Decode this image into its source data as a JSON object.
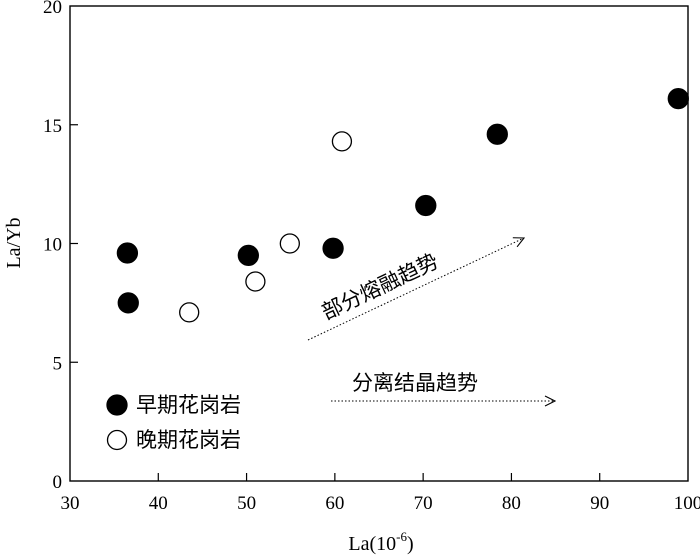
{
  "chart_data": {
    "type": "scatter",
    "xlabel": "La(10",
    "xlabel_sup": "-6",
    "xlabel_close": ")",
    "ylabel": "La/Yb",
    "xlim": [
      30,
      100
    ],
    "ylim": [
      0,
      20
    ],
    "xticks": [
      30,
      40,
      50,
      60,
      70,
      80,
      90,
      100
    ],
    "yticks": [
      0,
      5,
      10,
      15,
      20
    ],
    "grid": false,
    "legend_position": "bottom-left",
    "series": [
      {
        "name": "早期花岗岩",
        "marker": "filled-circle",
        "color": "#000000",
        "points": [
          {
            "x": 36.5,
            "y": 9.6
          },
          {
            "x": 36.6,
            "y": 7.5
          },
          {
            "x": 50.2,
            "y": 9.5
          },
          {
            "x": 59.8,
            "y": 9.8
          },
          {
            "x": 70.3,
            "y": 11.6
          },
          {
            "x": 78.4,
            "y": 14.6
          },
          {
            "x": 98.9,
            "y": 16.1
          }
        ]
      },
      {
        "name": "晚期花岗岩",
        "marker": "open-circle",
        "color": "#000000",
        "points": [
          {
            "x": 43.5,
            "y": 7.1
          },
          {
            "x": 51.0,
            "y": 8.4
          },
          {
            "x": 54.9,
            "y": 10.0
          },
          {
            "x": 60.8,
            "y": 14.3
          }
        ]
      }
    ],
    "annotations": [
      {
        "text": "部分熔融趋势",
        "arrow": "diagonal-dotted"
      },
      {
        "text": "分离结晶趋势",
        "arrow": "horizontal-dotted"
      }
    ]
  }
}
